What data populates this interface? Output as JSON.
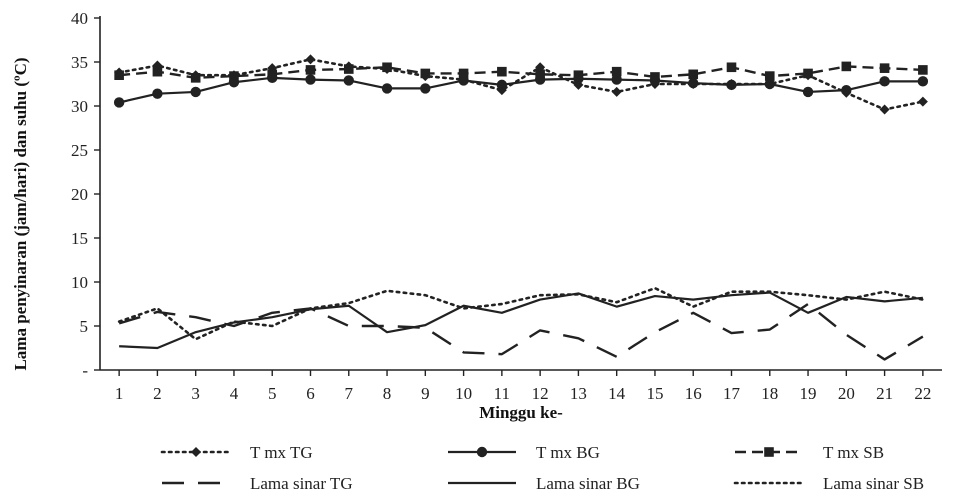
{
  "chart_data": {
    "type": "line",
    "xlabel": "Minggu ke-",
    "ylabel": "Lama penyinaran (jam/hari) dan suhu (ºC)",
    "x": [
      1,
      2,
      3,
      4,
      5,
      6,
      7,
      8,
      9,
      10,
      11,
      12,
      13,
      14,
      15,
      16,
      17,
      18,
      19,
      20,
      21,
      22
    ],
    "ylim": [
      0,
      40
    ],
    "yticks": [
      0,
      5,
      10,
      15,
      20,
      25,
      30,
      35,
      40
    ],
    "ytick_labels": [
      "-",
      "5",
      "10",
      "15",
      "20",
      "25",
      "30",
      "35",
      "40"
    ],
    "grid": false,
    "legend_position": "bottom",
    "series": [
      {
        "name": "T mx TG",
        "line_style": "dotted",
        "marker": "diamond",
        "color": "#222222",
        "values": [
          33.8,
          34.6,
          33.5,
          33.5,
          34.3,
          35.3,
          34.5,
          34.2,
          33.4,
          33.0,
          31.8,
          34.4,
          32.4,
          31.6,
          32.5,
          32.5,
          32.5,
          32.5,
          33.5,
          31.5,
          29.6,
          30.5
        ]
      },
      {
        "name": "T mx BG",
        "line_style": "solid",
        "marker": "circle",
        "color": "#222222",
        "values": [
          30.4,
          31.4,
          31.6,
          32.7,
          33.2,
          33.0,
          32.9,
          32.0,
          32.0,
          32.9,
          32.4,
          33.0,
          33.1,
          33.0,
          32.9,
          32.6,
          32.4,
          32.5,
          31.6,
          31.8,
          32.8,
          32.8
        ]
      },
      {
        "name": "T mx SB",
        "line_style": "dashed",
        "marker": "square",
        "color": "#222222",
        "values": [
          33.5,
          33.9,
          33.2,
          33.4,
          33.6,
          34.1,
          34.2,
          34.4,
          33.7,
          33.7,
          33.9,
          33.6,
          33.5,
          33.9,
          33.3,
          33.6,
          34.4,
          33.4,
          33.7,
          34.5,
          34.3,
          34.1
        ]
      },
      {
        "name": "Lama sinar TG",
        "line_style": "long-dash",
        "marker": "none",
        "color": "#222222",
        "values": [
          5.3,
          6.6,
          6.0,
          5.0,
          6.5,
          7.0,
          5.0,
          5.0,
          4.8,
          2.0,
          1.8,
          4.5,
          3.6,
          1.5,
          4.3,
          6.5,
          4.2,
          4.6,
          7.5,
          4.0,
          1.2,
          3.8
        ]
      },
      {
        "name": "Lama sinar BG",
        "line_style": "solid",
        "marker": "none",
        "color": "#222222",
        "values": [
          2.7,
          2.5,
          4.3,
          5.4,
          6.0,
          6.9,
          7.3,
          4.3,
          5.1,
          7.3,
          6.5,
          8.0,
          8.7,
          7.2,
          8.4,
          8.0,
          8.5,
          8.8,
          6.5,
          8.3,
          7.8,
          8.2
        ]
      },
      {
        "name": "Lama sinar SB",
        "line_style": "dotted",
        "marker": "none",
        "color": "#222222",
        "values": [
          5.5,
          7.0,
          3.5,
          5.5,
          5.0,
          7.0,
          7.6,
          9.0,
          8.5,
          7.0,
          7.5,
          8.5,
          8.6,
          7.7,
          9.3,
          7.2,
          8.9,
          8.9,
          8.5,
          8.0,
          8.9,
          8.0
        ]
      }
    ]
  }
}
